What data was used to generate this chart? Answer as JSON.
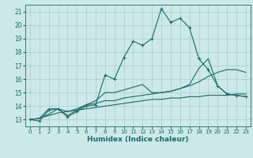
{
  "xlabel": "Humidex (Indice chaleur)",
  "xlim": [
    -0.5,
    23.5
  ],
  "ylim": [
    12.5,
    21.5
  ],
  "xticks": [
    0,
    1,
    2,
    3,
    4,
    5,
    6,
    7,
    8,
    9,
    10,
    11,
    12,
    13,
    14,
    15,
    16,
    17,
    18,
    19,
    20,
    21,
    22,
    23
  ],
  "yticks": [
    13,
    14,
    15,
    16,
    17,
    18,
    19,
    20,
    21
  ],
  "bg_color": "#cce8e8",
  "line_color": "#1a6b6b",
  "grid_color": "#aacccc",
  "lines": [
    [
      13.0,
      12.9,
      13.7,
      13.8,
      13.2,
      13.6,
      14.0,
      14.1,
      16.3,
      16.0,
      17.6,
      18.8,
      18.5,
      19.0,
      21.2,
      20.2,
      20.5,
      19.8,
      17.5,
      16.7,
      15.5,
      14.9,
      14.8,
      14.7
    ],
    [
      13.0,
      13.1,
      13.8,
      13.8,
      13.3,
      13.7,
      14.1,
      14.4,
      15.0,
      15.0,
      15.2,
      15.4,
      15.6,
      15.0,
      15.0,
      15.1,
      15.3,
      15.6,
      16.8,
      17.5,
      15.5,
      14.9,
      14.8,
      14.7
    ],
    [
      13.0,
      13.1,
      13.4,
      13.8,
      13.6,
      13.8,
      14.1,
      14.2,
      14.4,
      14.4,
      14.6,
      14.7,
      14.8,
      14.9,
      15.0,
      15.1,
      15.3,
      15.5,
      15.8,
      16.2,
      16.5,
      16.7,
      16.7,
      16.5
    ],
    [
      13.0,
      13.1,
      13.3,
      13.5,
      13.6,
      13.7,
      13.8,
      13.9,
      14.0,
      14.1,
      14.2,
      14.3,
      14.4,
      14.5,
      14.5,
      14.6,
      14.6,
      14.7,
      14.7,
      14.8,
      14.8,
      14.8,
      14.9,
      14.9
    ]
  ]
}
